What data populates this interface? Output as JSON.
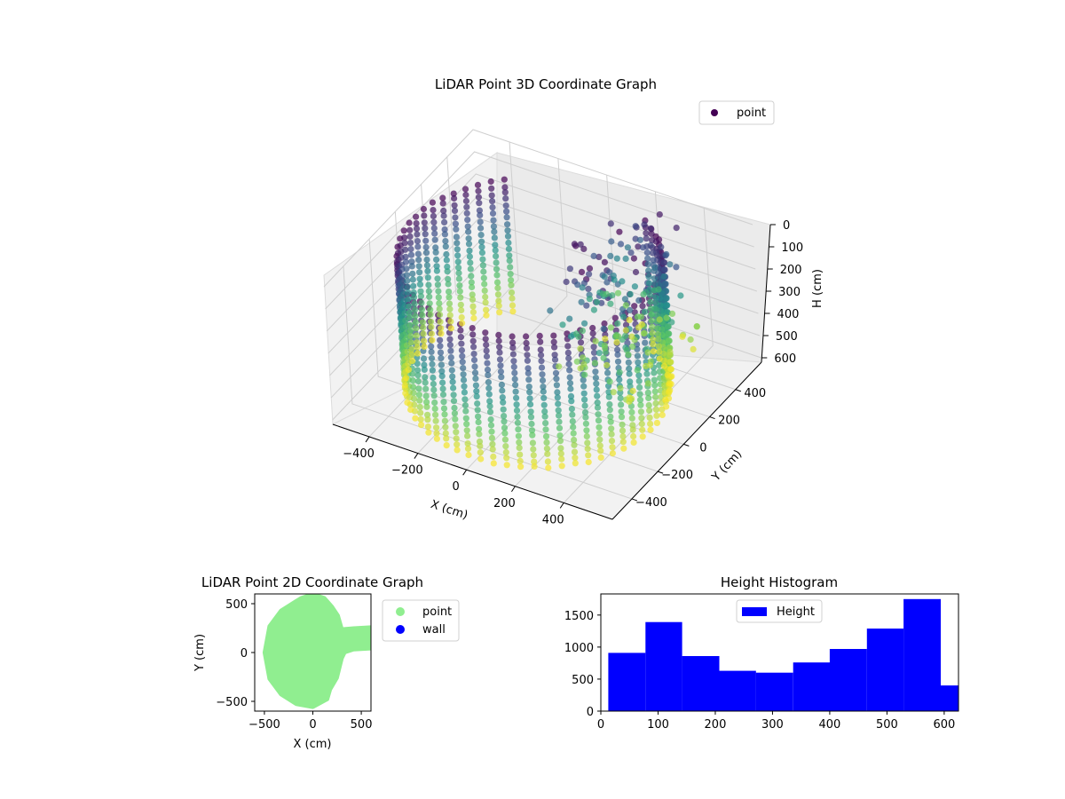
{
  "chart_data": [
    {
      "type": "scatter",
      "projection": "3d",
      "title": "LiDAR Point 3D Coordinate Graph",
      "xlabel": "X (cm)",
      "ylabel": "Y (cm)",
      "zlabel": "H (cm)",
      "xlim": [
        -550,
        600
      ],
      "ylim": [
        -550,
        600
      ],
      "zlim": [
        0,
        620
      ],
      "z_inverted": true,
      "x_ticks": [
        -400,
        -200,
        0,
        200,
        400
      ],
      "y_ticks": [
        -400,
        -200,
        0,
        200,
        400
      ],
      "z_ticks": [
        0,
        100,
        200,
        300,
        400,
        500,
        600
      ],
      "x_tick_labels": [
        "−400",
        "−200",
        "0",
        "200",
        "400"
      ],
      "y_tick_labels": [
        "−400",
        "−200",
        "0",
        "200",
        "400"
      ],
      "z_tick_labels": [
        "0",
        "100",
        "200",
        "300",
        "400",
        "500",
        "600"
      ],
      "colormap": "viridis",
      "color_by": "height",
      "grid": true,
      "legend": {
        "placement": "top-right",
        "entries": [
          {
            "label": "point",
            "color": "#440154"
          }
        ]
      },
      "series": [
        {
          "name": "point",
          "shape": "cylindrical wall of scan columns (radius ~500 cm) plus a scattered cluster near x 100 to 300, y 0 to 500",
          "sample_points": [
            [
              -480,
              0,
              10
            ],
            [
              -480,
              0,
              300
            ],
            [
              -480,
              0,
              600
            ],
            [
              0,
              480,
              10
            ],
            [
              0,
              480,
              600
            ],
            [
              -340,
              340,
              20
            ],
            [
              -340,
              340,
              580
            ],
            [
              -340,
              -340,
              600
            ],
            [
              0,
              -480,
              600
            ],
            [
              340,
              -340,
              600
            ],
            [
              250,
              300,
              30
            ],
            [
              300,
              400,
              100
            ],
            [
              200,
              450,
              150
            ],
            [
              350,
              500,
              80
            ],
            [
              150,
              420,
              250
            ],
            [
              250,
              350,
              400
            ],
            [
              300,
              450,
              450
            ],
            [
              400,
              480,
              520
            ]
          ]
        }
      ]
    },
    {
      "type": "scatter",
      "title": "LiDAR Point 2D Coordinate Graph",
      "xlabel": "X (cm)",
      "ylabel": "Y (cm)",
      "xlim": [
        -600,
        600
      ],
      "ylim": [
        -600,
        600
      ],
      "x_ticks": [
        -500,
        0,
        500
      ],
      "y_ticks": [
        -500,
        0,
        500
      ],
      "x_tick_labels": [
        "−500",
        "0",
        "500"
      ],
      "y_tick_labels": [
        "−500",
        "0",
        "500"
      ],
      "legend": {
        "placement": "outside right",
        "entries": [
          {
            "label": "point",
            "color": "#90ee90"
          },
          {
            "label": "wall",
            "color": "#0000ff"
          }
        ]
      },
      "series": [
        {
          "name": "point",
          "color": "#90ee90",
          "outline": [
            [
              -120,
              560
            ],
            [
              0,
              600
            ],
            [
              120,
              560
            ],
            [
              200,
              470
            ],
            [
              260,
              380
            ],
            [
              300,
              240
            ],
            [
              420,
              250
            ],
            [
              600,
              260
            ],
            [
              600,
              40
            ],
            [
              420,
              30
            ],
            [
              330,
              0
            ],
            [
              300,
              -60
            ],
            [
              250,
              -260
            ],
            [
              180,
              -380
            ],
            [
              150,
              -480
            ],
            [
              0,
              -560
            ],
            [
              -170,
              -530
            ],
            [
              -330,
              -430
            ],
            [
              -450,
              -270
            ],
            [
              -500,
              0
            ],
            [
              -450,
              270
            ],
            [
              -330,
              430
            ],
            [
              -170,
              530
            ]
          ]
        },
        {
          "name": "wall",
          "color": "#0000ff",
          "points": []
        }
      ]
    },
    {
      "type": "bar",
      "subtype": "histogram",
      "title": "Height Histogram",
      "xlabel": "",
      "ylabel": "",
      "xlim": [
        0,
        625
      ],
      "ylim": [
        0,
        1830
      ],
      "x_ticks": [
        0,
        100,
        200,
        300,
        400,
        500,
        600
      ],
      "y_ticks": [
        0,
        500,
        1000,
        1500
      ],
      "x_tick_labels": [
        "0",
        "100",
        "200",
        "300",
        "400",
        "500",
        "600"
      ],
      "y_tick_labels": [
        "0",
        "500",
        "1000",
        "1500"
      ],
      "color": "#0000ff",
      "legend": {
        "placement": "upper center",
        "entries": [
          {
            "label": "Height",
            "color": "#0000ff"
          }
        ]
      },
      "bin_edges": [
        13,
        78,
        142,
        207,
        271,
        336,
        400,
        465,
        529,
        594,
        658
      ],
      "series": [
        {
          "name": "Height",
          "values": [
            910,
            1390,
            860,
            630,
            600,
            760,
            970,
            1290,
            1750,
            400
          ]
        }
      ]
    }
  ]
}
